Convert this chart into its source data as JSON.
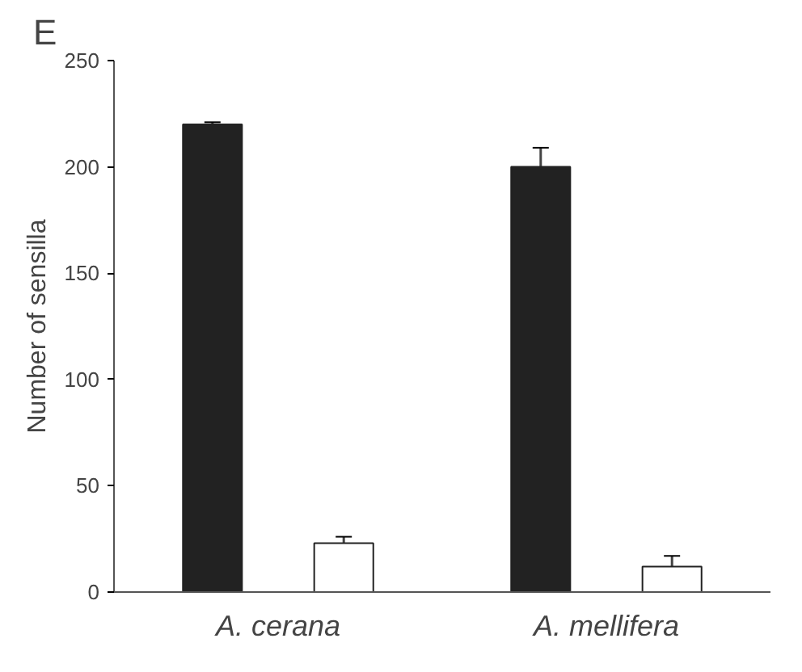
{
  "chart_data": {
    "type": "bar",
    "title": "E",
    "ylabel": "Number of sensilla",
    "categories": [
      "A. cerana",
      "A. mellifera"
    ],
    "series": [
      {
        "color": "#222222",
        "values": [
          220,
          200
        ],
        "errors": [
          1,
          9
        ]
      },
      {
        "color": "#ffffff",
        "values": [
          23,
          12
        ],
        "errors": [
          3,
          5
        ]
      }
    ],
    "ylim": [
      0,
      250
    ],
    "yticks": [
      0,
      50,
      100,
      150,
      200,
      250
    ],
    "grid": false
  }
}
